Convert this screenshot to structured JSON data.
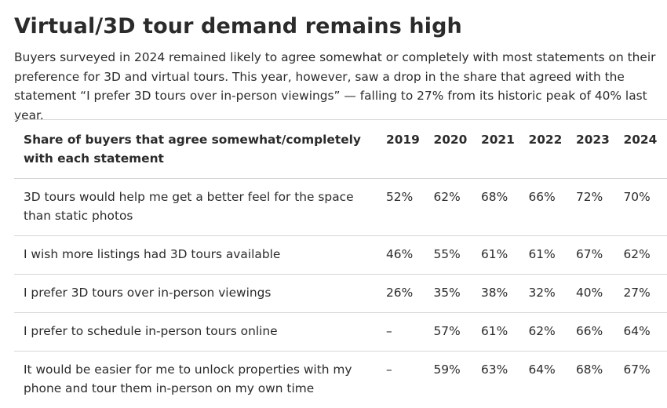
{
  "title": "Virtual/3D tour demand remains high",
  "intro": "Buyers surveyed in 2024 remained likely to agree somewhat or completely with most statements on their preference for 3D and virtual tours. This year, however, saw a drop in the share that agreed with the statement “I prefer 3D tours over in-person viewings” — falling to 27% from its historic peak of 40% last year.",
  "table": {
    "header": {
      "statement": "Share of buyers that agree somewhat/completely with each statement",
      "years": [
        "2019",
        "2020",
        "2021",
        "2022",
        "2023",
        "2024"
      ]
    },
    "rows": [
      {
        "statement": "3D tours would help me get a better feel for the space than static photos",
        "values": [
          "52%",
          "62%",
          "68%",
          "66%",
          "72%",
          "70%"
        ]
      },
      {
        "statement": "I wish more listings had 3D tours available",
        "values": [
          "46%",
          "55%",
          "61%",
          "61%",
          "67%",
          "62%"
        ]
      },
      {
        "statement": "I prefer 3D tours over in-person viewings",
        "values": [
          "26%",
          "35%",
          "38%",
          "32%",
          "40%",
          "27%"
        ]
      },
      {
        "statement": "I prefer to schedule in-person tours online",
        "values": [
          "–",
          "57%",
          "61%",
          "62%",
          "66%",
          "64%"
        ]
      },
      {
        "statement": "It would be easier for me to unlock properties with my phone and tour them in-person on my own time",
        "values": [
          "–",
          "59%",
          "63%",
          "64%",
          "68%",
          "67%"
        ]
      }
    ]
  }
}
